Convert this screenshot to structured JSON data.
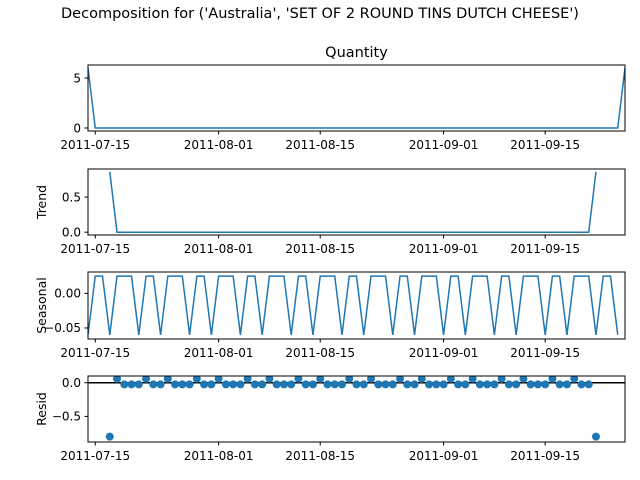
{
  "figure": {
    "suptitle": "Decomposition for ('Australia', 'SET OF 2 ROUND TINS DUTCH CHEESE')"
  },
  "colors": {
    "series": "#1f77b4",
    "axis": "#000000",
    "background": "#ffffff"
  },
  "chart_data": [
    {
      "type": "line",
      "title": "Quantity",
      "ylabel": "",
      "xlim": [
        "2011-07-14",
        "2011-09-26"
      ],
      "ylim": [
        -0.3,
        6.3
      ],
      "yticks": [
        0,
        5
      ],
      "ytick_labels": [
        "0",
        "5"
      ],
      "xticks": [
        "2011-07-15",
        "2011-08-01",
        "2011-08-15",
        "2011-09-01",
        "2011-09-15"
      ],
      "x": [
        "2011-07-14",
        "2011-07-15",
        "2011-09-25",
        "2011-09-26"
      ],
      "series": [
        {
          "values": [
            6,
            0,
            0,
            6
          ]
        }
      ]
    },
    {
      "type": "line",
      "title": "",
      "ylabel": "Trend",
      "xlim": [
        "2011-07-14",
        "2011-09-26"
      ],
      "ylim": [
        -0.04,
        0.9
      ],
      "yticks": [
        0,
        0.5
      ],
      "ytick_labels": [
        "0.0",
        "0.5"
      ],
      "xticks": [
        "2011-07-15",
        "2011-08-01",
        "2011-08-15",
        "2011-09-01",
        "2011-09-15"
      ],
      "x": [
        "2011-07-17",
        "2011-07-18",
        "2011-09-21",
        "2011-09-22"
      ],
      "series": [
        {
          "values": [
            0.86,
            0,
            0,
            0.86
          ]
        }
      ]
    },
    {
      "type": "line",
      "title": "",
      "ylabel": "Seasonal",
      "xlim": [
        "2011-07-14",
        "2011-09-26"
      ],
      "ylim": [
        -0.066,
        0.031
      ],
      "yticks": [
        -0.05,
        0.0
      ],
      "ytick_labels": [
        "−0.05",
        "0.00"
      ],
      "xticks": [
        "2011-07-15",
        "2011-08-01",
        "2011-08-15",
        "2011-09-01",
        "2011-09-15"
      ],
      "start": "2011-07-14",
      "period": 7,
      "pattern": [
        -0.06,
        0.0251,
        0.0251,
        -0.06,
        0.0251,
        0.0251,
        0.0251
      ],
      "n": 74
    },
    {
      "type": "scatter",
      "title": "",
      "ylabel": "Resid",
      "xlim": [
        "2011-07-14",
        "2011-09-26"
      ],
      "ylim": [
        -0.88,
        0.1
      ],
      "yticks": [
        -0.5,
        0.0
      ],
      "ytick_labels": [
        "−0.5",
        "0.0"
      ],
      "xticks": [
        "2011-07-15",
        "2011-08-01",
        "2011-08-15",
        "2011-09-01",
        "2011-09-15"
      ],
      "baseline": 0,
      "start": "2011-07-17",
      "end": "2011-09-22",
      "pattern_start": "2011-07-14",
      "pattern": [
        -0.0251,
        0.06,
        -0.0251,
        -0.0251,
        0.06,
        -0.0251,
        -0.0251
      ],
      "outliers": [
        {
          "x": "2011-07-17",
          "y": -0.8
        },
        {
          "x": "2011-09-22",
          "y": -0.8
        }
      ]
    }
  ]
}
